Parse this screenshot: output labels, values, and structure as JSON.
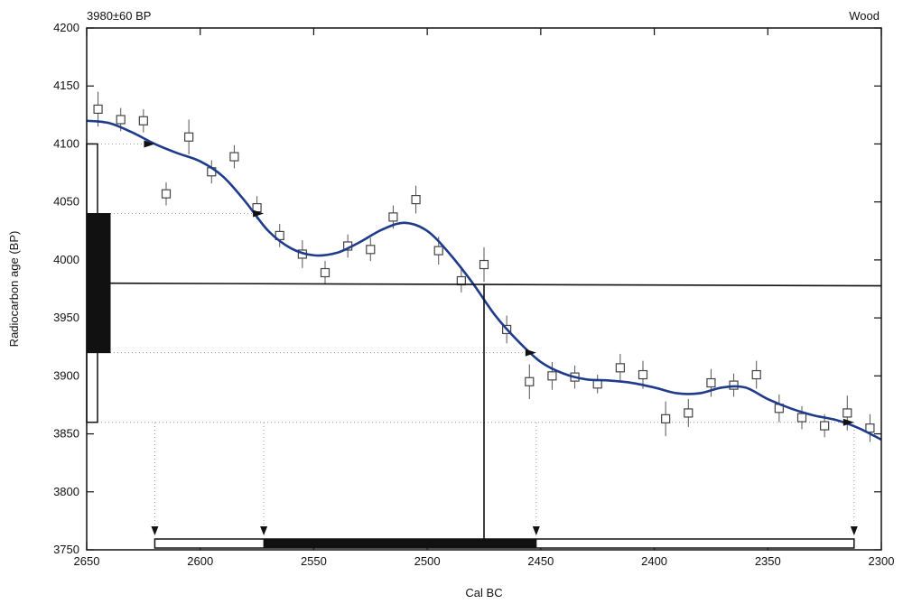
{
  "chart_data": {
    "type": "scatter",
    "title_left": "3980±60 BP",
    "title_right": "Wood",
    "xlabel": "Cal BC",
    "ylabel": "Radiocarbon age (BP)",
    "xlim": [
      2650,
      2300
    ],
    "ylim": [
      3750,
      4200
    ],
    "x_ticks": [
      2650,
      2600,
      2550,
      2500,
      2450,
      2400,
      2350,
      2300
    ],
    "y_ticks": [
      3750,
      3800,
      3850,
      3900,
      3950,
      4000,
      4050,
      4100,
      4150,
      4200
    ],
    "sample": {
      "age": 3980,
      "error": 60,
      "one_sigma": [
        3920,
        4040
      ],
      "two_sigma": [
        3860,
        4100
      ],
      "intercept_cal_bc": 2475
    },
    "calibration_curve": {
      "x": [
        2650,
        2640,
        2630,
        2620,
        2610,
        2600,
        2590,
        2580,
        2570,
        2560,
        2550,
        2540,
        2530,
        2520,
        2510,
        2500,
        2490,
        2480,
        2470,
        2460,
        2450,
        2440,
        2430,
        2420,
        2410,
        2400,
        2390,
        2380,
        2370,
        2360,
        2350,
        2340,
        2330,
        2320,
        2310,
        2300
      ],
      "y": [
        4120,
        4118,
        4110,
        4100,
        4092,
        4085,
        4072,
        4050,
        4025,
        4010,
        4004,
        4006,
        4015,
        4026,
        4032,
        4025,
        4005,
        3980,
        3952,
        3930,
        3912,
        3902,
        3897,
        3896,
        3894,
        3890,
        3885,
        3885,
        3890,
        3890,
        3880,
        3872,
        3866,
        3862,
        3855,
        3845
      ]
    },
    "data_points": [
      {
        "x": 2645,
        "y": 4130,
        "err": 15
      },
      {
        "x": 2635,
        "y": 4121,
        "err": 10
      },
      {
        "x": 2625,
        "y": 4120,
        "err": 10
      },
      {
        "x": 2615,
        "y": 4057,
        "err": 10
      },
      {
        "x": 2605,
        "y": 4106,
        "err": 15
      },
      {
        "x": 2595,
        "y": 4076,
        "err": 10
      },
      {
        "x": 2585,
        "y": 4089,
        "err": 10
      },
      {
        "x": 2575,
        "y": 4045,
        "err": 10
      },
      {
        "x": 2565,
        "y": 4021,
        "err": 10
      },
      {
        "x": 2555,
        "y": 4005,
        "err": 12
      },
      {
        "x": 2545,
        "y": 3989,
        "err": 10
      },
      {
        "x": 2535,
        "y": 4012,
        "err": 10
      },
      {
        "x": 2525,
        "y": 4009,
        "err": 10
      },
      {
        "x": 2515,
        "y": 4037,
        "err": 10
      },
      {
        "x": 2505,
        "y": 4052,
        "err": 12
      },
      {
        "x": 2495,
        "y": 4008,
        "err": 12
      },
      {
        "x": 2485,
        "y": 3982,
        "err": 10
      },
      {
        "x": 2475,
        "y": 3996,
        "err": 15
      },
      {
        "x": 2465,
        "y": 3940,
        "err": 12
      },
      {
        "x": 2455,
        "y": 3895,
        "err": 15
      },
      {
        "x": 2445,
        "y": 3900,
        "err": 12
      },
      {
        "x": 2435,
        "y": 3899,
        "err": 10
      },
      {
        "x": 2425,
        "y": 3893,
        "err": 8
      },
      {
        "x": 2415,
        "y": 3907,
        "err": 12
      },
      {
        "x": 2405,
        "y": 3901,
        "err": 12
      },
      {
        "x": 2395,
        "y": 3863,
        "err": 15
      },
      {
        "x": 2385,
        "y": 3868,
        "err": 12
      },
      {
        "x": 2375,
        "y": 3894,
        "err": 12
      },
      {
        "x": 2365,
        "y": 3892,
        "err": 10
      },
      {
        "x": 2355,
        "y": 3901,
        "err": 12
      },
      {
        "x": 2345,
        "y": 3872,
        "err": 12
      },
      {
        "x": 2335,
        "y": 3864,
        "err": 10
      },
      {
        "x": 2325,
        "y": 3857,
        "err": 10
      },
      {
        "x": 2315,
        "y": 3868,
        "err": 15
      },
      {
        "x": 2305,
        "y": 3855,
        "err": 12
      }
    ],
    "cal_range_two_sigma": [
      2620,
      2312
    ],
    "cal_range_one_sigma": [
      2572,
      2452
    ],
    "curve_color": "#1f3b8c",
    "grid": false
  }
}
